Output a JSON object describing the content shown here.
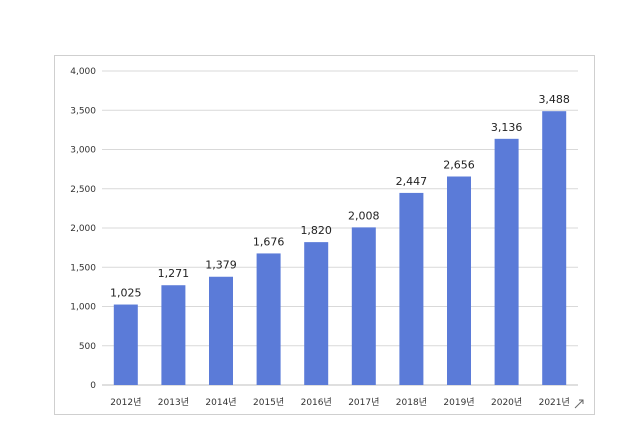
{
  "chart_data": {
    "type": "bar",
    "categories": [
      "2012년",
      "2013년",
      "2014년",
      "2015년",
      "2016년",
      "2017년",
      "2018년",
      "2019년",
      "2020년",
      "2021년"
    ],
    "values": [
      1025,
      1271,
      1379,
      1676,
      1820,
      2008,
      2447,
      2656,
      3136,
      3488
    ],
    "data_labels": [
      "1,025",
      "1,271",
      "1,379",
      "1,676",
      "1,820",
      "2,008",
      "2,447",
      "2,656",
      "3,136",
      "3,488"
    ],
    "y_ticks": [
      "0",
      "500",
      "1,000",
      "1,500",
      "2,000",
      "2,500",
      "3,000",
      "3,500",
      "4,000"
    ],
    "ylim": [
      0,
      4000
    ],
    "grid": true,
    "legend": "none",
    "bar_color": "#5b7bd8",
    "title": "",
    "xlabel": "",
    "ylabel": ""
  }
}
